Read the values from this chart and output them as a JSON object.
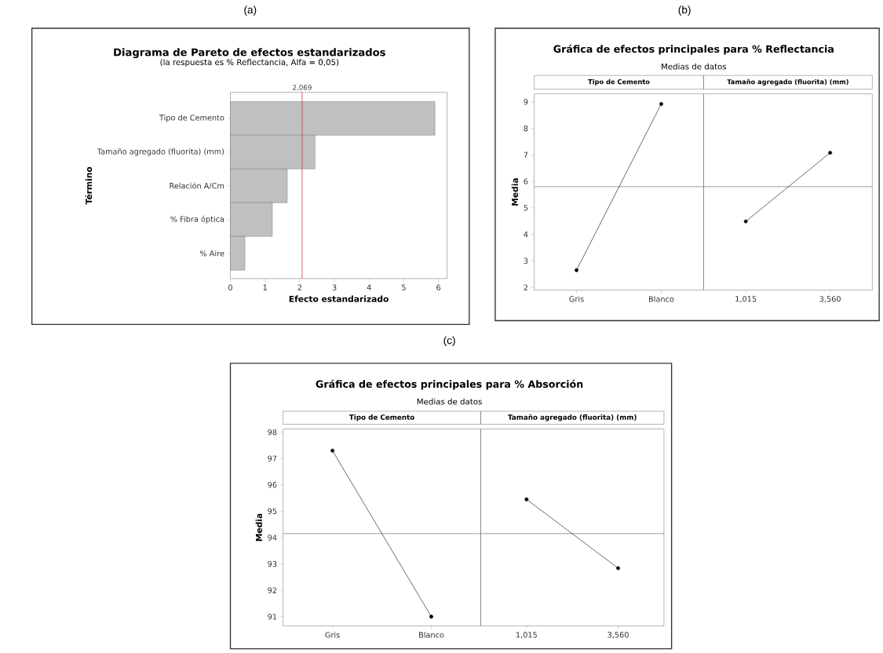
{
  "chart_data": [
    {
      "type": "bar",
      "orientation": "horizontal",
      "title": "Diagrama de Pareto de efectos estandarizados",
      "subtitle": "(la respuesta es % Reflectancia, Alfa = 0,05)",
      "xlabel": "Efecto estandarizado",
      "ylabel": "Término",
      "categories": [
        "Tipo de Cemento",
        "Tamaño agregado (fluorita) (mm)",
        "Relación A/Cm",
        "% Fibra óptica",
        "% Aire"
      ],
      "values": [
        5.9,
        2.44,
        1.64,
        1.21,
        0.42
      ],
      "color": "#c0c0c0",
      "xlim": [
        0,
        6.25
      ],
      "xticks": [
        0,
        1,
        2,
        3,
        4,
        5,
        6
      ],
      "ref_lines": [
        {
          "axis": "x",
          "value": 2.069,
          "label": "2,069",
          "color": "#cc3333"
        }
      ],
      "annotations": [
        "(a)"
      ]
    },
    {
      "type": "line",
      "title": "Tipo de Cemento",
      "ylabel": "Media",
      "categories": [
        "Gris",
        "Blanco"
      ],
      "values": [
        2.65,
        8.92
      ],
      "color": "#000000",
      "marker": "circle",
      "ylim": [
        1.9,
        9.3
      ],
      "yticks": [
        2,
        3,
        4,
        5,
        6,
        7,
        8,
        9
      ],
      "ref_lines": [
        {
          "axis": "y",
          "value": 5.8,
          "color": "#808080"
        }
      ],
      "annotations": [
        "(b)",
        "Gráfica de efectos principales para % Reflectancia",
        "Medias de datos"
      ]
    },
    {
      "type": "line",
      "title": "Tamaño agregado (fluorita) (mm)",
      "categories": [
        "1,015",
        "3,560"
      ],
      "values": [
        4.49,
        7.08
      ],
      "color": "#000000",
      "marker": "circle",
      "ylim": [
        1.9,
        9.3
      ],
      "yticks": [
        2,
        3,
        4,
        5,
        6,
        7,
        8,
        9
      ],
      "tick_labels": "x",
      "ref_lines": [
        {
          "axis": "y",
          "value": 5.8,
          "color": "#808080"
        }
      ]
    },
    {
      "type": "line",
      "title": "Tipo de Cemento",
      "ylabel": "Media",
      "categories": [
        "Gris",
        "Blanco"
      ],
      "values": [
        97.3,
        91.0
      ],
      "color": "#000000",
      "marker": "circle",
      "ylim": [
        90.65,
        98.12
      ],
      "yticks": [
        91,
        92,
        93,
        94,
        95,
        96,
        97,
        98
      ],
      "ref_lines": [
        {
          "axis": "y",
          "value": 94.15,
          "color": "#808080"
        }
      ],
      "annotations": [
        "(c)",
        "Gráfica de efectos principales para % Absorción",
        "Medias de datos"
      ]
    },
    {
      "type": "line",
      "title": "Tamaño agregado (fluorita) (mm)",
      "categories": [
        "1,015",
        "3,560"
      ],
      "values": [
        95.45,
        92.84
      ],
      "color": "#000000",
      "marker": "circle",
      "ylim": [
        90.65,
        98.12
      ],
      "yticks": [
        91,
        92,
        93,
        94,
        95,
        96,
        97,
        98
      ],
      "tick_labels": "x",
      "ref_lines": [
        {
          "axis": "y",
          "value": 94.15,
          "color": "#808080"
        }
      ]
    }
  ]
}
